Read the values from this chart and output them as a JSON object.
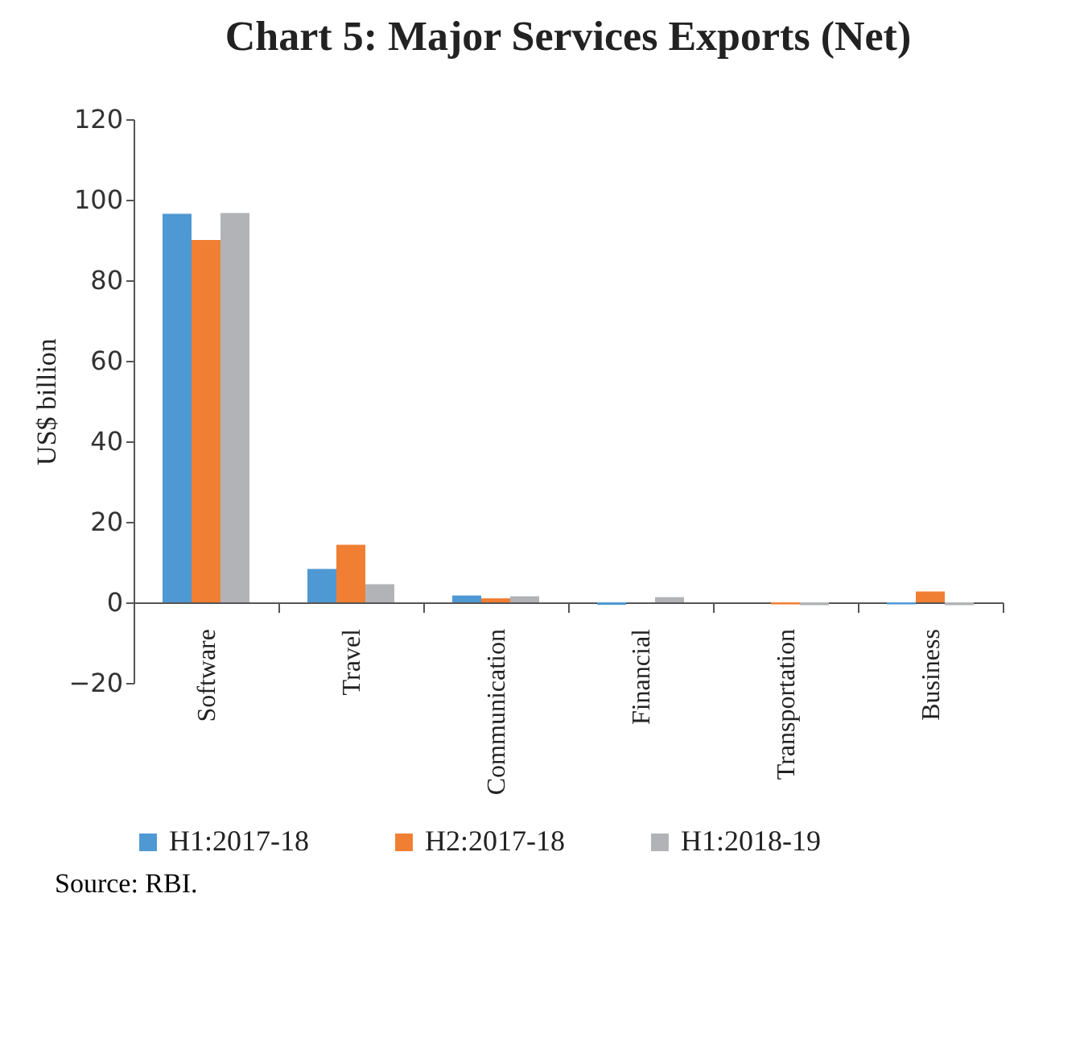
{
  "chart_data": {
    "type": "bar",
    "title": "Chart 5: Major Services Exports (Net)",
    "ylabel": "US$ billion",
    "categories": [
      "Software",
      "Travel",
      "Communication",
      "Financial",
      "Transportation",
      "Business"
    ],
    "series": [
      {
        "name": "H1:2017-18",
        "color": "#4e98d3",
        "values": [
          96.5,
          8.3,
          1.7,
          -0.6,
          null,
          -0.5
        ]
      },
      {
        "name": "H2:2017-18",
        "color": "#f07f33",
        "values": [
          90,
          14.3,
          1.0,
          null,
          -0.5,
          2.7
        ]
      },
      {
        "name": "H1:2018-19",
        "color": "#b2b3b6",
        "values": [
          96.7,
          4.5,
          1.5,
          1.3,
          -0.7,
          -0.7
        ]
      }
    ],
    "ylim": [
      -20,
      120
    ],
    "yticks": [
      -20,
      0,
      20,
      40,
      60,
      80,
      100,
      120
    ],
    "legend": "bottom",
    "annotations": [
      "Source: RBI."
    ]
  }
}
